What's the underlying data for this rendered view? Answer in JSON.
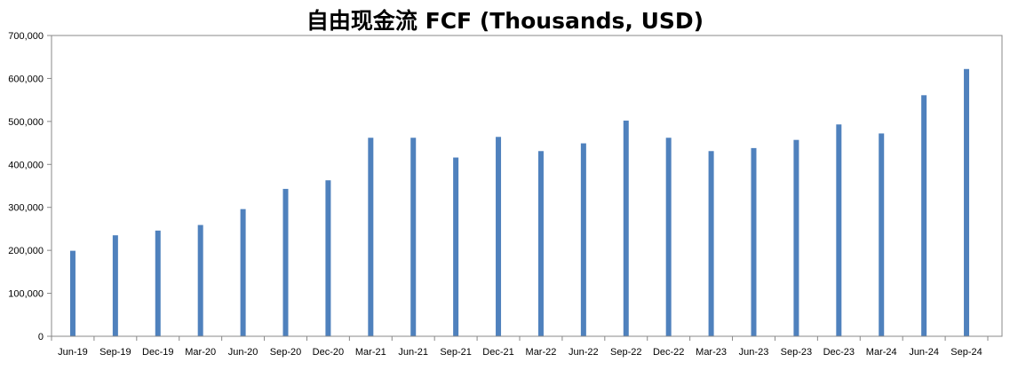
{
  "chart_data": {
    "type": "bar",
    "title": "自由现金流 FCF (Thousands, USD)",
    "xlabel": "",
    "ylabel": "",
    "ylim": [
      0,
      700000
    ],
    "yticks": [
      "0",
      "100,000",
      "200,000",
      "300,000",
      "400,000",
      "500,000",
      "600,000",
      "700,000"
    ],
    "grid": false,
    "legend": "none",
    "bar_color": "#4f81bd",
    "categories": [
      "Jun-19",
      "Sep-19",
      "Dec-19",
      "Mar-20",
      "Jun-20",
      "Sep-20",
      "Dec-20",
      "Mar-21",
      "Jun-21",
      "Sep-21",
      "Dec-21",
      "Mar-22",
      "Jun-22",
      "Sep-22",
      "Dec-22",
      "Mar-23",
      "Jun-23",
      "Sep-23",
      "Dec-23",
      "Mar-24",
      "Jun-24",
      "Sep-24"
    ],
    "values": [
      199000,
      235000,
      246000,
      259000,
      296000,
      343000,
      363000,
      462000,
      462000,
      416000,
      464000,
      431000,
      449000,
      502000,
      462000,
      431000,
      438000,
      457000,
      493000,
      472000,
      561000,
      622000
    ]
  }
}
